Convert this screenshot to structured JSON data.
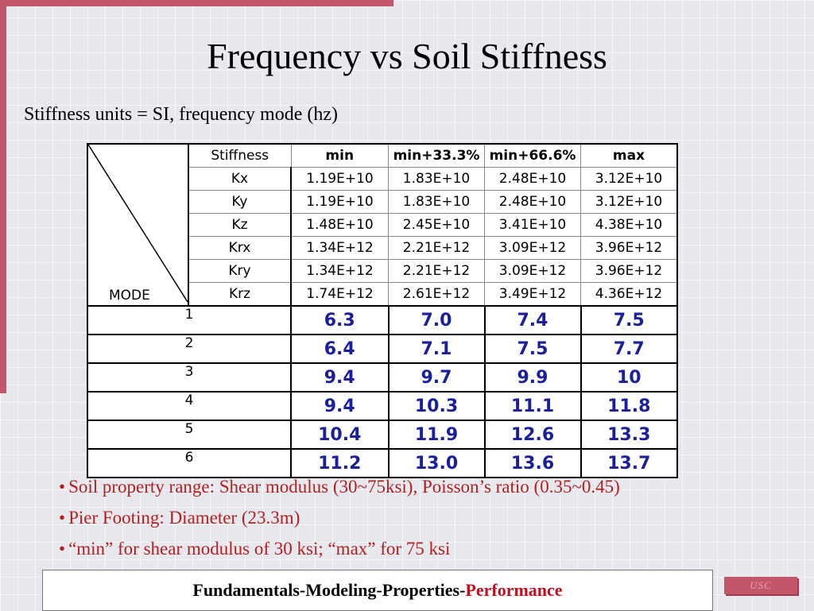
{
  "title": "Frequency vs Soil Stiffness",
  "subtitle": "Stiffness units = SI, frequency mode (hz)",
  "table": {
    "corner_label": "MODE",
    "header": [
      "Stiffness",
      "min",
      "min+33.3%",
      "min+66.6%",
      "max"
    ],
    "stiffness_rows": [
      {
        "name": "Kx",
        "values": [
          "1.19E+10",
          "1.83E+10",
          "2.48E+10",
          "3.12E+10"
        ]
      },
      {
        "name": "Ky",
        "values": [
          "1.19E+10",
          "1.83E+10",
          "2.48E+10",
          "3.12E+10"
        ]
      },
      {
        "name": "Kz",
        "values": [
          "1.48E+10",
          "2.45E+10",
          "3.41E+10",
          "4.38E+10"
        ]
      },
      {
        "name": "Krx",
        "values": [
          "1.34E+12",
          "2.21E+12",
          "3.09E+12",
          "3.96E+12"
        ]
      },
      {
        "name": "Kry",
        "values": [
          "1.34E+12",
          "2.21E+12",
          "3.09E+12",
          "3.96E+12"
        ]
      },
      {
        "name": "Krz",
        "values": [
          "1.74E+12",
          "2.61E+12",
          "3.49E+12",
          "4.36E+12"
        ]
      }
    ],
    "mode_rows": [
      {
        "mode": "1",
        "values": [
          "6.3",
          "7.0",
          "7.4",
          "7.5"
        ]
      },
      {
        "mode": "2",
        "values": [
          "6.4",
          "7.1",
          "7.5",
          "7.7"
        ]
      },
      {
        "mode": "3",
        "values": [
          "9.4",
          "9.7",
          "9.9",
          "10"
        ]
      },
      {
        "mode": "4",
        "values": [
          "9.4",
          "10.3",
          "11.1",
          "11.8"
        ]
      },
      {
        "mode": "5",
        "values": [
          "10.4",
          "11.9",
          "12.6",
          "13.3"
        ]
      },
      {
        "mode": "6",
        "values": [
          "11.2",
          "13.0",
          "13.6",
          "13.7"
        ]
      }
    ]
  },
  "bullets": [
    "Soil property range: Shear modulus (30~75ksi),  Poisson’s ratio (0.35~0.45)",
    "Pier Footing: Diameter (23.3m)",
    "“min” for shear modulus of 30 ksi; “max” for 75 ksi"
  ],
  "bullet_symbol": "•",
  "footer": {
    "prefix": "Fundamentals-Modeling-Properties-",
    "accent": "Performance"
  },
  "logo_text": "USC",
  "colors": {
    "accent_bar": "#c4566a",
    "bullet_text": "#b42020",
    "frequency_text": "#1a1f9c",
    "footer_accent": "#c01020"
  }
}
